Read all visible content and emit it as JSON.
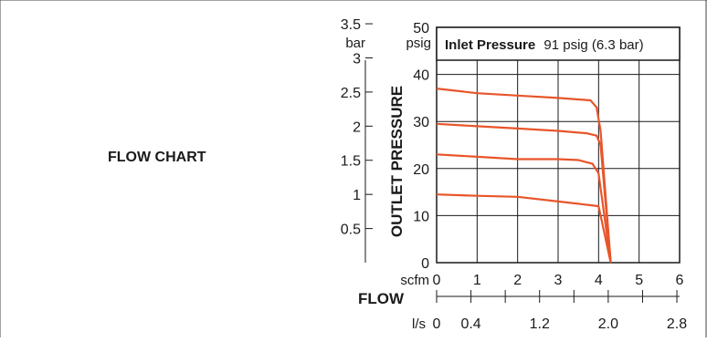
{
  "panel_label": "FLOW CHART",
  "chart_data": {
    "type": "line",
    "title_bold": "Inlet Pressure",
    "title_rest": "91 psig (6.3 bar)",
    "ylabel": "OUTLET PRESSURE",
    "xlabel": "FLOW",
    "y_unit_left": "bar",
    "y_unit_right": "psig",
    "x_unit_top": "scfm",
    "x_unit_bottom": "l/s",
    "ylim": [
      0,
      50
    ],
    "xlim": [
      0,
      6
    ],
    "grid": true,
    "y_ticks_psig": [
      "50",
      "40",
      "30",
      "20",
      "10",
      "0"
    ],
    "y_ticks_bar": [
      "3.5",
      "3",
      "2.5",
      "2",
      "1.5",
      "1",
      "0.5"
    ],
    "x_ticks_scfm": [
      "0",
      "1",
      "2",
      "3",
      "4",
      "5",
      "6"
    ],
    "x_ticks_ls": [
      "0",
      "0.4",
      "1.2",
      "2.0",
      "2.8"
    ],
    "line_color": "#e8552a",
    "series": [
      {
        "x": [
          0,
          1,
          2,
          3,
          3.8,
          3.95,
          4.05,
          4.3
        ],
        "y": [
          37,
          36,
          35.5,
          35,
          34.5,
          33,
          28,
          0
        ]
      },
      {
        "x": [
          0,
          1,
          2,
          3,
          3.7,
          3.95,
          4.05,
          4.3
        ],
        "y": [
          29.5,
          29,
          28.5,
          28,
          27.5,
          27,
          25,
          0
        ]
      },
      {
        "x": [
          0,
          1,
          2,
          3,
          3.5,
          3.85,
          4.0,
          4.3
        ],
        "y": [
          23,
          22.5,
          22,
          22,
          21.8,
          21,
          19,
          0
        ]
      },
      {
        "x": [
          0,
          1,
          2,
          3,
          3.8,
          4.0,
          4.3
        ],
        "y": [
          14.5,
          14.2,
          14,
          13,
          12.2,
          12,
          0
        ]
      }
    ]
  }
}
